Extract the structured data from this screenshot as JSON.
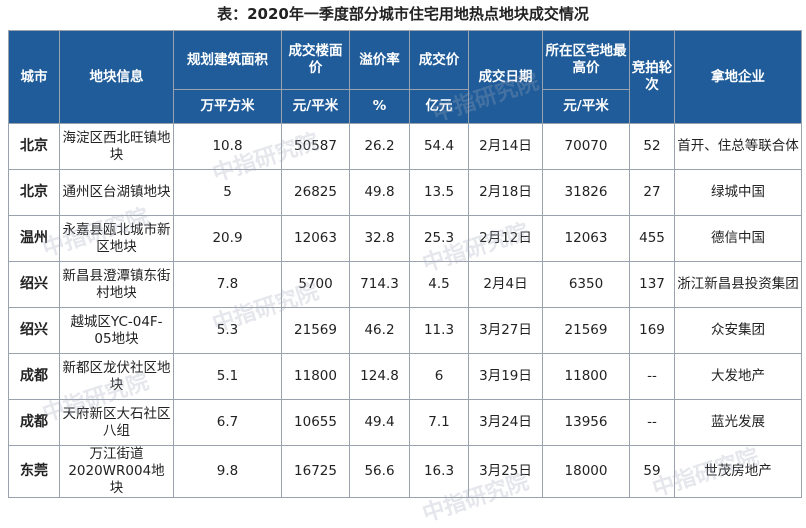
{
  "title": "表：2020年一季度部分城市住宅用地热点地块成交情况",
  "headers": {
    "city": "城市",
    "plot": "地块信息",
    "area": "规划建筑面积",
    "floor_price": "成交楼面价",
    "premium": "溢价率",
    "deal_price": "成交价",
    "date": "成交日期",
    "max_price": "所在区宅地最高价",
    "rounds": "竞拍轮次",
    "company": "拿地企业"
  },
  "units": {
    "area": "万平方米",
    "floor_price": "元/平米",
    "premium": "%",
    "deal_price": "亿元",
    "max_price": "元/平米"
  },
  "rows": [
    {
      "city": "北京",
      "plot": "海淀区西北旺镇地块",
      "area": "10.8",
      "floor_price": "50587",
      "premium": "26.2",
      "deal_price": "54.4",
      "date": "2月14日",
      "max_price": "70070",
      "rounds": "52",
      "company": "首开、住总等联合体"
    },
    {
      "city": "北京",
      "plot": "通州区台湖镇地块",
      "area": "5",
      "floor_price": "26825",
      "premium": "49.8",
      "deal_price": "13.5",
      "date": "2月18日",
      "max_price": "31826",
      "rounds": "27",
      "company": "绿城中国"
    },
    {
      "city": "温州",
      "plot": "永嘉县瓯北城市新区地块",
      "area": "20.9",
      "floor_price": "12063",
      "premium": "32.8",
      "deal_price": "25.3",
      "date": "2月12日",
      "max_price": "12063",
      "rounds": "455",
      "company": "德信中国"
    },
    {
      "city": "绍兴",
      "plot": "新昌县澄潭镇东街村地块",
      "area": "7.8",
      "floor_price": "5700",
      "premium": "714.3",
      "deal_price": "4.5",
      "date": "2月4日",
      "max_price": "6350",
      "rounds": "137",
      "company": "浙江新昌县投资集团"
    },
    {
      "city": "绍兴",
      "plot": "越城区YC-04F-05地块",
      "area": "5.3",
      "floor_price": "21569",
      "premium": "46.2",
      "deal_price": "11.3",
      "date": "3月27日",
      "max_price": "21569",
      "rounds": "169",
      "company": "众安集团"
    },
    {
      "city": "成都",
      "plot": "新都区龙伏社区地块",
      "area": "5.1",
      "floor_price": "11800",
      "premium": "124.8",
      "deal_price": "6",
      "date": "3月19日",
      "max_price": "11800",
      "rounds": "--",
      "company": "大发地产"
    },
    {
      "city": "成都",
      "plot": "天府新区大石社区八组",
      "area": "6.7",
      "floor_price": "10655",
      "premium": "49.4",
      "deal_price": "7.1",
      "date": "3月24日",
      "max_price": "13956",
      "rounds": "--",
      "company": "蓝光发展"
    },
    {
      "city": "东莞",
      "plot": "万江街道2020WR004地块",
      "area": "9.8",
      "floor_price": "16725",
      "premium": "56.6",
      "deal_price": "16.3",
      "date": "3月25日",
      "max_price": "18000",
      "rounds": "59",
      "company": "世茂房地产"
    }
  ],
  "watermark": "中指研究院",
  "colors": {
    "header_bg": "#1f5c99",
    "header_text": "#ffffff",
    "border": "#9aa3ad"
  }
}
